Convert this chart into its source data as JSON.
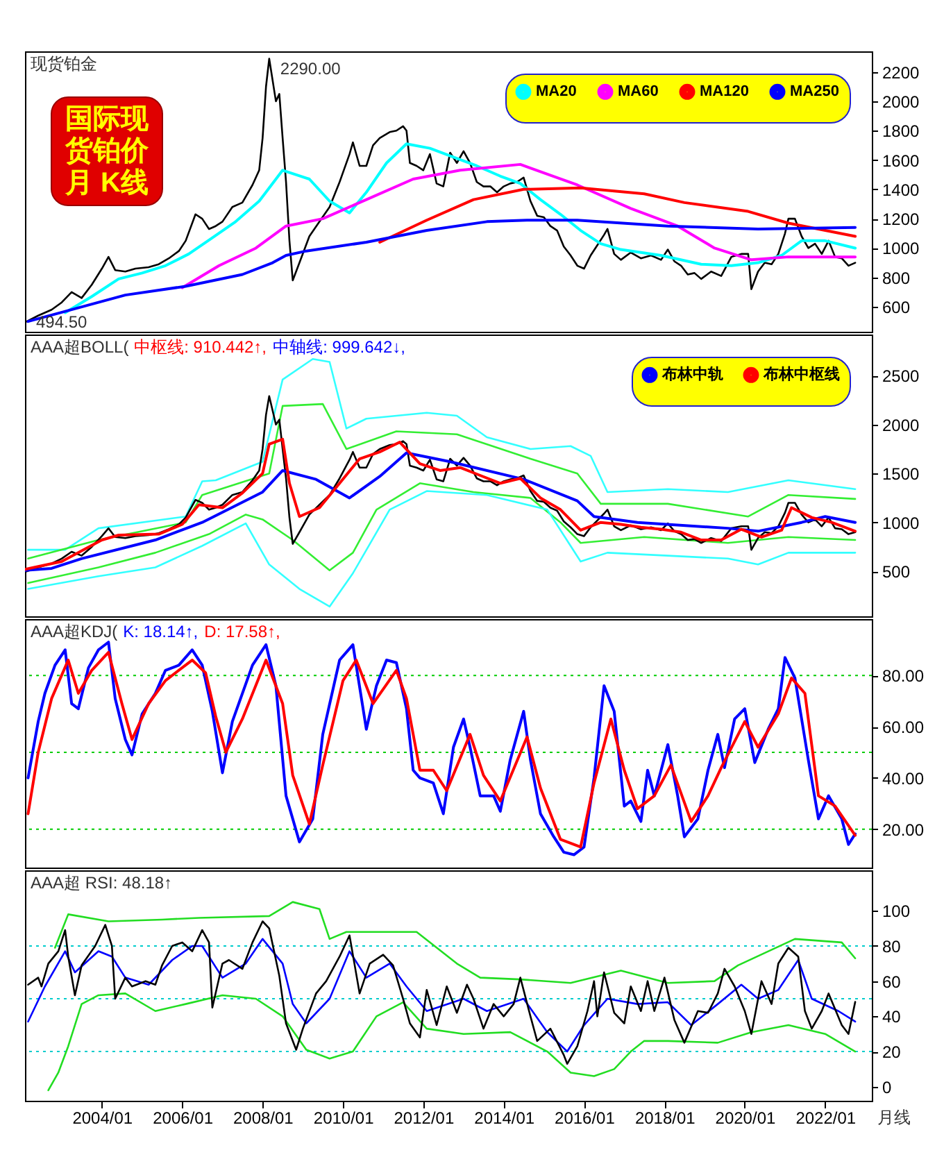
{
  "chart_data": [
    {
      "type": "line",
      "title": "现货铂金",
      "annotations": [
        "国际现货铂价月 K线",
        {
          "text": "2290.00",
          "x": "2008-03",
          "y": 2290
        },
        {
          "text": "494.50",
          "x": "2002-02",
          "y": 494.5
        }
      ],
      "xlim": [
        "2002-02",
        "2023-03"
      ],
      "ylim": [
        430,
        2340
      ],
      "yticks": [
        600,
        800,
        1000,
        1200,
        1400,
        1600,
        1800,
        2000,
        2200
      ],
      "tick_labels": "y",
      "legend": "top right",
      "series": [
        {
          "color": "#000000",
          "x": [
            "2002-02",
            "2002-06",
            "2002-10",
            "2003-01",
            "2003-04",
            "2003-07",
            "2003-10",
            "2004-01",
            "2004-03",
            "2004-05",
            "2004-08",
            "2004-11",
            "2005-03",
            "2005-06",
            "2005-09",
            "2005-12",
            "2006-02",
            "2006-05",
            "2006-07",
            "2006-09",
            "2006-11",
            "2007-01",
            "2007-04",
            "2007-07",
            "2007-10",
            "2007-12",
            "2008-01",
            "2008-02",
            "2008-03",
            "2008-05",
            "2008-06",
            "2008-07",
            "2008-08",
            "2008-09",
            "2008-10",
            "2008-12",
            "2009-03",
            "2009-06",
            "2009-09",
            "2009-12",
            "2010-03",
            "2010-04",
            "2010-06",
            "2010-08",
            "2010-10",
            "2010-12",
            "2011-03",
            "2011-05",
            "2011-07",
            "2011-08",
            "2011-09",
            "2011-11",
            "2012-01",
            "2012-03",
            "2012-05",
            "2012-07",
            "2012-09",
            "2012-11",
            "2013-01",
            "2013-03",
            "2013-05",
            "2013-07",
            "2013-09",
            "2013-11",
            "2014-01",
            "2014-03",
            "2014-05",
            "2014-07",
            "2014-09",
            "2014-11",
            "2015-01",
            "2015-03",
            "2015-05",
            "2015-07",
            "2015-09",
            "2015-11",
            "2016-01",
            "2016-03",
            "2016-05",
            "2016-07",
            "2016-08",
            "2016-10",
            "2016-12",
            "2017-03",
            "2017-06",
            "2017-09",
            "2017-12",
            "2018-02",
            "2018-04",
            "2018-06",
            "2018-08",
            "2018-10",
            "2018-12",
            "2019-03",
            "2019-06",
            "2019-09",
            "2019-12",
            "2020-02",
            "2020-03",
            "2020-05",
            "2020-07",
            "2020-09",
            "2020-11",
            "2021-01",
            "2021-02",
            "2021-04",
            "2021-06",
            "2021-08",
            "2021-10",
            "2021-12",
            "2022-02",
            "2022-04",
            "2022-06",
            "2022-08",
            "2022-10"
          ],
          "values": [
            494.5,
            540,
            580,
            630,
            700,
            660,
            750,
            860,
            940,
            850,
            840,
            860,
            870,
            890,
            930,
            980,
            1050,
            1230,
            1200,
            1130,
            1150,
            1180,
            1280,
            1310,
            1430,
            1530,
            1750,
            2100,
            2290,
            2000,
            2050,
            1750,
            1450,
            1050,
            780,
            900,
            1080,
            1180,
            1280,
            1450,
            1640,
            1720,
            1560,
            1560,
            1700,
            1750,
            1790,
            1800,
            1830,
            1800,
            1580,
            1560,
            1530,
            1640,
            1440,
            1420,
            1650,
            1580,
            1660,
            1580,
            1450,
            1420,
            1420,
            1380,
            1420,
            1440,
            1450,
            1480,
            1320,
            1220,
            1210,
            1150,
            1120,
            1010,
            950,
            880,
            860,
            950,
            1020,
            1090,
            1130,
            960,
            920,
            970,
            930,
            950,
            920,
            990,
            910,
            880,
            820,
            830,
            790,
            840,
            810,
            940,
            960,
            960,
            720,
            840,
            900,
            890,
            960,
            1100,
            1200,
            1200,
            1080,
            1000,
            1030,
            960,
            1050,
            940,
            930,
            880,
            900
          ]
        },
        {
          "name": "MA20",
          "color": "#00ffff",
          "x": [
            "2003-02",
            "2003-10",
            "2004-06",
            "2005-01",
            "2005-08",
            "2006-03",
            "2006-10",
            "2007-05",
            "2007-12",
            "2008-07",
            "2009-03",
            "2009-09",
            "2010-03",
            "2010-08",
            "2011-02",
            "2011-08",
            "2012-03",
            "2012-10",
            "2013-05",
            "2013-12",
            "2014-06",
            "2014-12",
            "2015-06",
            "2015-12",
            "2016-06",
            "2016-12",
            "2017-12",
            "2018-12",
            "2019-09",
            "2020-05",
            "2020-12",
            "2021-06",
            "2022-01",
            "2022-10"
          ],
          "values": [
            560,
            670,
            790,
            830,
            880,
            960,
            1070,
            1180,
            1320,
            1530,
            1470,
            1320,
            1240,
            1380,
            1580,
            1710,
            1680,
            1620,
            1560,
            1490,
            1440,
            1330,
            1230,
            1120,
            1030,
            990,
            950,
            890,
            880,
            900,
            950,
            1050,
            1050,
            1000
          ]
        },
        {
          "name": "MA60",
          "color": "#ff00ff",
          "x": [
            "2006-01",
            "2006-12",
            "2007-11",
            "2008-08",
            "2009-07",
            "2010-08",
            "2011-10",
            "2012-12",
            "2014-06",
            "2015-11",
            "2017-03",
            "2018-05",
            "2019-04",
            "2020-03",
            "2021-02",
            "2022-10"
          ],
          "values": [
            730,
            880,
            1000,
            1150,
            1200,
            1330,
            1470,
            1530,
            1570,
            1430,
            1270,
            1150,
            1000,
            920,
            940,
            940
          ]
        },
        {
          "name": "MA120",
          "color": "#ff0000",
          "x": [
            "2010-12",
            "2012-02",
            "2013-04",
            "2014-07",
            "2015-12",
            "2017-07",
            "2018-07",
            "2020-02",
            "2021-02",
            "2022-10"
          ],
          "values": [
            1040,
            1190,
            1330,
            1400,
            1410,
            1370,
            1310,
            1250,
            1170,
            1080
          ]
        },
        {
          "name": "MA250",
          "color": "#0000ff",
          "x": [
            "2002-03",
            "2004-08",
            "2006-02",
            "2007-07",
            "2008-04",
            "2008-08",
            "2009-02",
            "2010-08",
            "2012-02",
            "2013-08",
            "2014-08",
            "2015-11",
            "2018-02",
            "2020-05",
            "2022-10"
          ],
          "values": [
            500,
            680,
            740,
            820,
            900,
            950,
            980,
            1040,
            1120,
            1180,
            1190,
            1190,
            1150,
            1130,
            1140
          ]
        }
      ]
    },
    {
      "type": "line",
      "title": "AAA超BOLL(",
      "annotations": [
        "中枢线: 910.442↑,",
        "中轴线: 999.642↓,"
      ],
      "xlim": [
        "2002-02",
        "2023-03"
      ],
      "ylim": [
        40,
        2920
      ],
      "yticks": [
        500,
        1000,
        1500,
        2000,
        2500
      ],
      "tick_labels": "y",
      "legend": "top right",
      "series": [
        {
          "color": "#33ffff",
          "x": [
            "2002-03",
            "2003-02",
            "2003-12",
            "2006-02",
            "2006-07",
            "2006-11",
            "2008-01",
            "2008-07",
            "2009-04",
            "2009-09",
            "2010-02",
            "2010-08",
            "2012-02",
            "2012-11",
            "2013-08",
            "2014-09",
            "2015-09",
            "2016-03",
            "2016-08",
            "2018-02",
            "2019-08",
            "2021-02",
            "2022-10"
          ],
          "values": [
            720,
            720,
            940,
            1060,
            1420,
            1430,
            1620,
            2460,
            2670,
            2640,
            1960,
            2060,
            2120,
            2090,
            1870,
            1750,
            1780,
            1680,
            1310,
            1340,
            1310,
            1430,
            1340
          ]
        },
        {
          "color": "#33ee33",
          "x": [
            "2002-03",
            "2003-12",
            "2006-02",
            "2006-07",
            "2008-03",
            "2008-07",
            "2009-07",
            "2010-02",
            "2011-05",
            "2012-11",
            "2014-09",
            "2015-11",
            "2016-06",
            "2018-02",
            "2020-02",
            "2021-02",
            "2022-10"
          ],
          "values": [
            630,
            820,
            1000,
            1280,
            1500,
            2190,
            2210,
            1750,
            1930,
            1900,
            1650,
            1500,
            1190,
            1190,
            1060,
            1280,
            1240
          ]
        },
        {
          "color": "#33ee33",
          "x": [
            "2002-03",
            "2003-12",
            "2005-05",
            "2006-09",
            "2007-08",
            "2008-01",
            "2008-10",
            "2009-09",
            "2010-04",
            "2010-11",
            "2011-12",
            "2013-04",
            "2014-09",
            "2015-06",
            "2015-12",
            "2017-07",
            "2019-08",
            "2021-02",
            "2022-10"
          ],
          "values": [
            380,
            540,
            690,
            880,
            1080,
            1030,
            820,
            510,
            690,
            1130,
            1400,
            1310,
            1250,
            1000,
            790,
            850,
            790,
            850,
            820
          ]
        },
        {
          "color": "#33ffff",
          "x": [
            "2002-03",
            "2003-12",
            "2005-05",
            "2006-07",
            "2007-08",
            "2008-03",
            "2008-12",
            "2009-09",
            "2010-04",
            "2011-03",
            "2012-02",
            "2013-08",
            "2015-02",
            "2015-12",
            "2016-08",
            "2018-02",
            "2019-08",
            "2020-05",
            "2021-02",
            "2022-10"
          ],
          "values": [
            320,
            450,
            540,
            760,
            990,
            570,
            320,
            140,
            480,
            1130,
            1320,
            1280,
            1130,
            600,
            690,
            660,
            630,
            570,
            690,
            690
          ]
        },
        {
          "color": "#000000",
          "x": [
            "2002-02",
            "2002-06",
            "2002-10",
            "2003-01",
            "2003-04",
            "2003-07",
            "2003-10",
            "2004-01",
            "2004-03",
            "2004-05",
            "2004-08",
            "2004-11",
            "2005-03",
            "2005-06",
            "2005-09",
            "2005-12",
            "2006-02",
            "2006-05",
            "2006-07",
            "2006-09",
            "2006-11",
            "2007-01",
            "2007-04",
            "2007-07",
            "2007-10",
            "2007-12",
            "2008-01",
            "2008-02",
            "2008-03",
            "2008-05",
            "2008-06",
            "2008-07",
            "2008-08",
            "2008-09",
            "2008-10",
            "2008-12",
            "2009-03",
            "2009-06",
            "2009-09",
            "2009-12",
            "2010-03",
            "2010-04",
            "2010-06",
            "2010-08",
            "2010-10",
            "2010-12",
            "2011-03",
            "2011-05",
            "2011-07",
            "2011-08",
            "2011-09",
            "2011-11",
            "2012-01",
            "2012-03",
            "2012-05",
            "2012-07",
            "2012-09",
            "2012-11",
            "2013-01",
            "2013-03",
            "2013-05",
            "2013-07",
            "2013-09",
            "2013-11",
            "2014-01",
            "2014-03",
            "2014-05",
            "2014-07",
            "2014-09",
            "2014-11",
            "2015-01",
            "2015-03",
            "2015-05",
            "2015-07",
            "2015-09",
            "2015-11",
            "2016-01",
            "2016-03",
            "2016-05",
            "2016-07",
            "2016-08",
            "2016-10",
            "2016-12",
            "2017-03",
            "2017-06",
            "2017-09",
            "2017-12",
            "2018-02",
            "2018-04",
            "2018-06",
            "2018-08",
            "2018-10",
            "2018-12",
            "2019-03",
            "2019-06",
            "2019-09",
            "2019-12",
            "2020-02",
            "2020-03",
            "2020-05",
            "2020-07",
            "2020-09",
            "2020-11",
            "2021-01",
            "2021-02",
            "2021-04",
            "2021-06",
            "2021-08",
            "2021-10",
            "2021-12",
            "2022-02",
            "2022-04",
            "2022-06",
            "2022-08",
            "2022-10"
          ],
          "values": [
            494.5,
            540,
            580,
            630,
            700,
            660,
            750,
            860,
            940,
            850,
            840,
            860,
            870,
            890,
            930,
            980,
            1050,
            1230,
            1200,
            1130,
            1150,
            1180,
            1280,
            1310,
            1430,
            1530,
            1750,
            2100,
            2290,
            2000,
            2050,
            1750,
            1450,
            1050,
            780,
            900,
            1080,
            1180,
            1280,
            1450,
            1640,
            1720,
            1560,
            1560,
            1700,
            1750,
            1790,
            1800,
            1830,
            1800,
            1580,
            1560,
            1530,
            1640,
            1440,
            1420,
            1650,
            1580,
            1660,
            1580,
            1450,
            1420,
            1420,
            1380,
            1420,
            1440,
            1450,
            1480,
            1320,
            1220,
            1210,
            1150,
            1120,
            1010,
            950,
            880,
            860,
            950,
            1020,
            1090,
            1130,
            960,
            920,
            970,
            930,
            950,
            920,
            990,
            910,
            880,
            820,
            830,
            790,
            840,
            810,
            940,
            960,
            960,
            720,
            840,
            900,
            890,
            960,
            1100,
            1200,
            1200,
            1080,
            1000,
            1030,
            960,
            1050,
            940,
            930,
            880,
            900
          ]
        },
        {
          "name": "布林中轨",
          "color": "#0000ff",
          "x": [
            "2002-02",
            "2002-10",
            "2003-07",
            "2005-05",
            "2006-07",
            "2008-01",
            "2008-07",
            "2009-05",
            "2010-03",
            "2010-12",
            "2011-08",
            "2012-09",
            "2014-07",
            "2015-11",
            "2016-04",
            "2017-05",
            "2019-08",
            "2020-05",
            "2021-06",
            "2022-01",
            "2022-10"
          ],
          "values": [
            510,
            530,
            630,
            820,
            1000,
            1310,
            1530,
            1440,
            1250,
            1470,
            1710,
            1620,
            1440,
            1220,
            1060,
            1000,
            940,
            910,
            1000,
            1060,
            999.642
          ]
        },
        {
          "name": "布林中枢线",
          "color": "#ff0000",
          "x": [
            "2002-02",
            "2003-01",
            "2004-01",
            "2004-06",
            "2005-06",
            "2006-01",
            "2006-06",
            "2007-01",
            "2007-07",
            "2008-01",
            "2008-03",
            "2008-07",
            "2008-09",
            "2008-12",
            "2009-06",
            "2009-12",
            "2010-06",
            "2010-12",
            "2011-06",
            "2011-12",
            "2012-06",
            "2012-12",
            "2013-06",
            "2013-12",
            "2014-06",
            "2014-12",
            "2015-06",
            "2015-12",
            "2016-06",
            "2016-12",
            "2017-06",
            "2017-12",
            "2018-06",
            "2018-12",
            "2019-06",
            "2019-12",
            "2020-06",
            "2020-12",
            "2021-03",
            "2021-09",
            "2022-03",
            "2022-10"
          ],
          "values": [
            520,
            600,
            820,
            870,
            880,
            980,
            1180,
            1150,
            1300,
            1500,
            1800,
            1850,
            1400,
            1060,
            1150,
            1400,
            1650,
            1720,
            1820,
            1600,
            1530,
            1560,
            1480,
            1400,
            1450,
            1250,
            1130,
            920,
            1000,
            980,
            950,
            930,
            900,
            820,
            820,
            930,
            850,
            920,
            1150,
            1050,
            1000,
            910.442
          ]
        }
      ]
    },
    {
      "type": "line",
      "title": "AAA超KDJ(",
      "xlim": [
        "2002-02",
        "2023-03"
      ],
      "ylim": [
        5,
        102
      ],
      "yticks": [
        {
          "value": 20,
          "label": "20.00"
        },
        {
          "value": 40,
          "label": "40.00"
        },
        {
          "value": 60,
          "label": "60.00"
        },
        {
          "value": 80,
          "label": "80.00"
        }
      ],
      "tick_labels": "y",
      "ref_lines": [
        {
          "axis": "y",
          "value": 20,
          "color": "#00cc00",
          "line_style": "dotted"
        },
        {
          "axis": "y",
          "value": 50,
          "color": "#00cc00",
          "line_style": "dotted"
        },
        {
          "axis": "y",
          "value": 80,
          "color": "#00cc00",
          "line_style": "dotted"
        }
      ],
      "series": [
        {
          "name": "K: 18.14↑,",
          "color": "#0000ff",
          "x": [
            "2002-03",
            "2002-06",
            "2002-08",
            "2002-11",
            "2003-02",
            "2003-04",
            "2003-06",
            "2003-09",
            "2003-12",
            "2004-03",
            "2004-05",
            "2004-08",
            "2004-10",
            "2005-01",
            "2005-05",
            "2005-08",
            "2005-12",
            "2006-04",
            "2006-07",
            "2006-10",
            "2007-01",
            "2007-04",
            "2007-10",
            "2008-02",
            "2008-05",
            "2008-08",
            "2008-12",
            "2009-04",
            "2009-07",
            "2009-12",
            "2010-04",
            "2010-08",
            "2010-11",
            "2011-02",
            "2011-05",
            "2011-08",
            "2011-10",
            "2011-12",
            "2012-04",
            "2012-07",
            "2012-10",
            "2013-01",
            "2013-03",
            "2013-06",
            "2013-10",
            "2013-12",
            "2014-03",
            "2014-07",
            "2014-09",
            "2014-12",
            "2015-04",
            "2015-07",
            "2015-10",
            "2016-01",
            "2016-04",
            "2016-07",
            "2016-10",
            "2017-01",
            "2017-03",
            "2017-06",
            "2017-08",
            "2017-10",
            "2018-02",
            "2018-05",
            "2018-07",
            "2018-11",
            "2019-02",
            "2019-05",
            "2019-07",
            "2019-10",
            "2020-01",
            "2020-04",
            "2020-08",
            "2020-11",
            "2021-01",
            "2021-04",
            "2021-08",
            "2021-11",
            "2022-02",
            "2022-06",
            "2022-08",
            "2022-10"
          ],
          "values": [
            40,
            62,
            73,
            84,
            90,
            69,
            67,
            83,
            90,
            93,
            71,
            55,
            49,
            65,
            73,
            82,
            84,
            90,
            84,
            66,
            42,
            62,
            84,
            92,
            76,
            33,
            15,
            24,
            57,
            86,
            92,
            59,
            76,
            86,
            85,
            67,
            43,
            40,
            38,
            26,
            52,
            63,
            52,
            33,
            33,
            27,
            47,
            66,
            47,
            26,
            17,
            11,
            10,
            13,
            40,
            76,
            66,
            29,
            31,
            23,
            43,
            33,
            53,
            33,
            17,
            24,
            43,
            57,
            44,
            63,
            67,
            46,
            59,
            67,
            87,
            79,
            47,
            24,
            33,
            24,
            14,
            18.14
          ]
        },
        {
          "name": "D: 17.58↑,",
          "color": "#ff0000",
          "x": [
            "2002-03",
            "2002-06",
            "2002-10",
            "2003-03",
            "2003-06",
            "2003-10",
            "2004-03",
            "2004-07",
            "2004-10",
            "2005-03",
            "2005-08",
            "2006-04",
            "2006-08",
            "2006-11",
            "2007-02",
            "2007-07",
            "2008-02",
            "2008-07",
            "2008-10",
            "2009-03",
            "2009-07",
            "2010-01",
            "2010-05",
            "2010-10",
            "2011-05",
            "2011-08",
            "2011-12",
            "2012-04",
            "2012-08",
            "2013-03",
            "2013-07",
            "2013-12",
            "2014-08",
            "2014-12",
            "2015-06",
            "2015-12",
            "2016-04",
            "2016-09",
            "2017-01",
            "2017-05",
            "2017-10",
            "2018-03",
            "2018-09",
            "2019-02",
            "2019-06",
            "2020-01",
            "2020-05",
            "2020-11",
            "2021-03",
            "2021-07",
            "2021-11",
            "2022-04",
            "2022-10"
          ],
          "values": [
            26,
            50,
            71,
            86,
            73,
            82,
            89,
            69,
            55,
            69,
            78,
            86,
            81,
            64,
            50,
            63,
            86,
            69,
            41,
            22,
            45,
            78,
            86,
            69,
            82,
            71,
            43,
            43,
            35,
            57,
            41,
            31,
            56,
            36,
            16,
            13,
            38,
            63,
            43,
            28,
            33,
            45,
            23,
            33,
            44,
            62,
            52,
            65,
            79,
            73,
            33,
            29,
            17.58
          ]
        }
      ]
    },
    {
      "type": "line",
      "title": "AAA超 RSI: 48.18↑",
      "annotations": [
        "月线"
      ],
      "xlim": [
        "2002-02",
        "2023-03"
      ],
      "ylim": [
        -8,
        123
      ],
      "xticks": [
        {
          "value": "2004-01",
          "label": "2004/01"
        },
        {
          "value": "2006-01",
          "label": "2006/01"
        },
        {
          "value": "2008-01",
          "label": "2008/01"
        },
        {
          "value": "2010-01",
          "label": "2010/01"
        },
        {
          "value": "2012-01",
          "label": "2012/01"
        },
        {
          "value": "2014-01",
          "label": "2014/01"
        },
        {
          "value": "2016-01",
          "label": "2016/01"
        },
        {
          "value": "2018-01",
          "label": "2018/01"
        },
        {
          "value": "2020-01",
          "label": "2020/01"
        },
        {
          "value": "2022-01",
          "label": "2022/01"
        }
      ],
      "yticks": [
        0,
        20,
        40,
        60,
        80,
        100
      ],
      "ref_lines": [
        {
          "axis": "y",
          "value": 20,
          "color": "#00cccc",
          "line_style": "dotted"
        },
        {
          "axis": "y",
          "value": 50,
          "color": "#00cccc",
          "line_style": "dotted"
        },
        {
          "axis": "y",
          "value": 80,
          "color": "#00cccc",
          "line_style": "dotted"
        }
      ],
      "series": [
        {
          "color": "#22dd22",
          "x": [
            "2002-11",
            "2003-03",
            "2004-03",
            "2005-07",
            "2006-06",
            "2008-03",
            "2008-10",
            "2009-06",
            "2009-09",
            "2010-02",
            "2011-11",
            "2012-11",
            "2013-06",
            "2014-06",
            "2015-09",
            "2016-12",
            "2018-02",
            "2019-04",
            "2019-11",
            "2021-04",
            "2022-06",
            "2022-10"
          ],
          "values": [
            79,
            98,
            94,
            95,
            96,
            97,
            105,
            101,
            84,
            88,
            88,
            70,
            62,
            61,
            59,
            66,
            59,
            60,
            69,
            84,
            82,
            73
          ]
        },
        {
          "color": "#22dd22",
          "x": [
            "2002-09",
            "2002-12",
            "2003-03",
            "2003-07",
            "2003-12",
            "2004-08",
            "2005-05",
            "2006-02",
            "2007-01",
            "2007-11",
            "2008-07",
            "2009-02",
            "2009-09",
            "2010-04",
            "2010-11",
            "2011-07",
            "2012-02",
            "2013-01",
            "2014-03",
            "2015-02",
            "2015-09",
            "2016-04",
            "2016-10",
            "2017-03",
            "2017-07",
            "2018-02",
            "2019-05",
            "2020-03",
            "2021-02",
            "2022-01",
            "2022-10"
          ],
          "values": [
            -2,
            8,
            23,
            47,
            52,
            53,
            43,
            47,
            52,
            50,
            40,
            21,
            16,
            20,
            40,
            48,
            33,
            30,
            31,
            20,
            8,
            6,
            10,
            20,
            26,
            26,
            25,
            31,
            35,
            30,
            20
          ]
        },
        {
          "color": "#0000ff",
          "x": [
            "2002-03",
            "2002-08",
            "2003-02",
            "2003-05",
            "2003-12",
            "2004-04",
            "2004-08",
            "2005-03",
            "2005-10",
            "2006-04",
            "2006-07",
            "2007-01",
            "2007-08",
            "2008-01",
            "2008-07",
            "2008-10",
            "2009-02",
            "2009-09",
            "2010-03",
            "2010-08",
            "2011-03",
            "2011-08",
            "2012-02",
            "2013-01",
            "2013-08",
            "2014-07",
            "2015-02",
            "2015-08",
            "2016-01",
            "2016-08",
            "2017-05",
            "2018-02",
            "2018-09",
            "2019-05",
            "2019-12",
            "2020-05",
            "2020-11",
            "2021-05",
            "2021-09",
            "2022-05",
            "2022-10"
          ],
          "values": [
            37,
            57,
            77,
            65,
            77,
            74,
            62,
            58,
            72,
            80,
            80,
            62,
            70,
            84,
            70,
            47,
            36,
            50,
            77,
            62,
            70,
            57,
            43,
            50,
            43,
            50,
            31,
            20,
            35,
            50,
            47,
            48,
            35,
            47,
            58,
            50,
            55,
            72,
            50,
            43,
            37
          ]
        },
        {
          "color": "#000000",
          "x": [
            "2002-03",
            "2002-06",
            "2002-07",
            "2002-09",
            "2002-12",
            "2003-02",
            "2003-03",
            "2003-05",
            "2003-07",
            "2003-11",
            "2004-02",
            "2004-04",
            "2004-05",
            "2004-08",
            "2004-10",
            "2005-02",
            "2005-05",
            "2005-07",
            "2005-10",
            "2006-01",
            "2006-04",
            "2006-07",
            "2006-09",
            "2006-10",
            "2007-01",
            "2007-03",
            "2007-07",
            "2007-10",
            "2008-01",
            "2008-03",
            "2008-06",
            "2008-08",
            "2008-11",
            "2009-01",
            "2009-05",
            "2009-08",
            "2009-12",
            "2010-03",
            "2010-06",
            "2010-09",
            "2011-01",
            "2011-04",
            "2011-07",
            "2011-09",
            "2011-12",
            "2012-02",
            "2012-05",
            "2012-08",
            "2012-11",
            "2013-02",
            "2013-04",
            "2013-07",
            "2013-10",
            "2014-01",
            "2014-04",
            "2014-06",
            "2014-09",
            "2014-11",
            "2015-03",
            "2015-07",
            "2015-08",
            "2015-11",
            "2016-02",
            "2016-04",
            "2016-05",
            "2016-07",
            "2016-10",
            "2017-01",
            "2017-03",
            "2017-06",
            "2017-08",
            "2017-10",
            "2018-01",
            "2018-04",
            "2018-07",
            "2018-11",
            "2019-02",
            "2019-05",
            "2019-07",
            "2019-10",
            "2020-01",
            "2020-03",
            "2020-06",
            "2020-09",
            "2020-11",
            "2021-02",
            "2021-05",
            "2021-07",
            "2021-09",
            "2021-12",
            "2022-02",
            "2022-06",
            "2022-08",
            "2022-10"
          ],
          "values": [
            58,
            62,
            57,
            70,
            77,
            89,
            74,
            52,
            69,
            80,
            92,
            80,
            50,
            62,
            57,
            60,
            58,
            69,
            80,
            82,
            77,
            89,
            82,
            45,
            70,
            72,
            67,
            82,
            94,
            90,
            63,
            36,
            21,
            33,
            53,
            60,
            74,
            86,
            53,
            70,
            75,
            69,
            50,
            36,
            28,
            55,
            35,
            57,
            42,
            58,
            50,
            33,
            47,
            40,
            47,
            62,
            40,
            26,
            33,
            18,
            13,
            23,
            43,
            60,
            40,
            65,
            42,
            36,
            57,
            43,
            60,
            43,
            62,
            38,
            25,
            43,
            42,
            53,
            67,
            57,
            43,
            30,
            60,
            47,
            70,
            79,
            74,
            43,
            33,
            43,
            53,
            35,
            30,
            48.18
          ]
        }
      ]
    }
  ]
}
